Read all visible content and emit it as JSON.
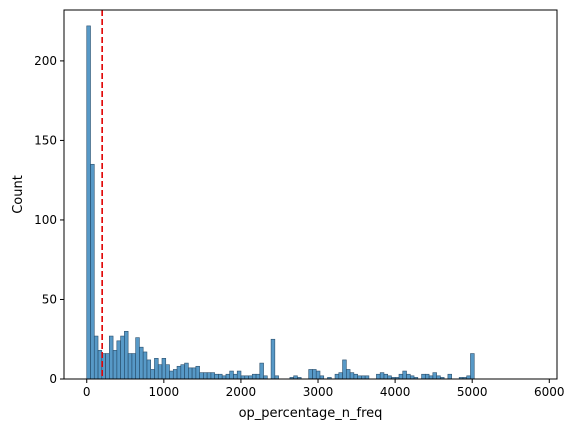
{
  "chart_data": {
    "type": "bar",
    "title": "",
    "xlabel": "op_percentage_n_freq",
    "ylabel": "Count",
    "xlim": [
      -295,
      6100
    ],
    "ylim": [
      0,
      232
    ],
    "xticks": [
      0,
      1000,
      2000,
      3000,
      4000,
      5000,
      6000
    ],
    "yticks": [
      0,
      50,
      100,
      150,
      200
    ],
    "bin_start": 0,
    "bin_width": 48.8,
    "bar_color": "#1f77b4",
    "bar_alpha": 0.75,
    "bar_edge_color": "#2b4f6c",
    "reference_line": {
      "x": 200,
      "color": "#e00000",
      "style": "dashed"
    },
    "values": [
      222,
      135,
      27,
      18,
      16,
      16,
      27,
      18,
      24,
      27,
      30,
      16,
      16,
      26,
      20,
      17,
      12,
      6,
      13,
      9,
      13,
      9,
      5,
      6,
      8,
      9,
      10,
      7,
      7,
      8,
      4,
      4,
      4,
      4,
      3,
      3,
      2,
      3,
      5,
      3,
      5,
      2,
      2,
      2,
      3,
      3,
      10,
      2,
      0,
      25,
      2,
      0,
      0,
      0,
      1,
      2,
      1,
      0,
      0,
      6,
      6,
      5,
      2,
      0,
      1,
      0,
      3,
      4,
      12,
      6,
      4,
      3,
      2,
      2,
      2,
      0,
      0,
      3,
      4,
      3,
      2,
      1,
      1,
      3,
      5,
      3,
      2,
      1,
      0,
      3,
      3,
      2,
      4,
      2,
      1,
      0,
      3,
      0,
      0,
      1,
      1,
      2,
      16
    ]
  }
}
